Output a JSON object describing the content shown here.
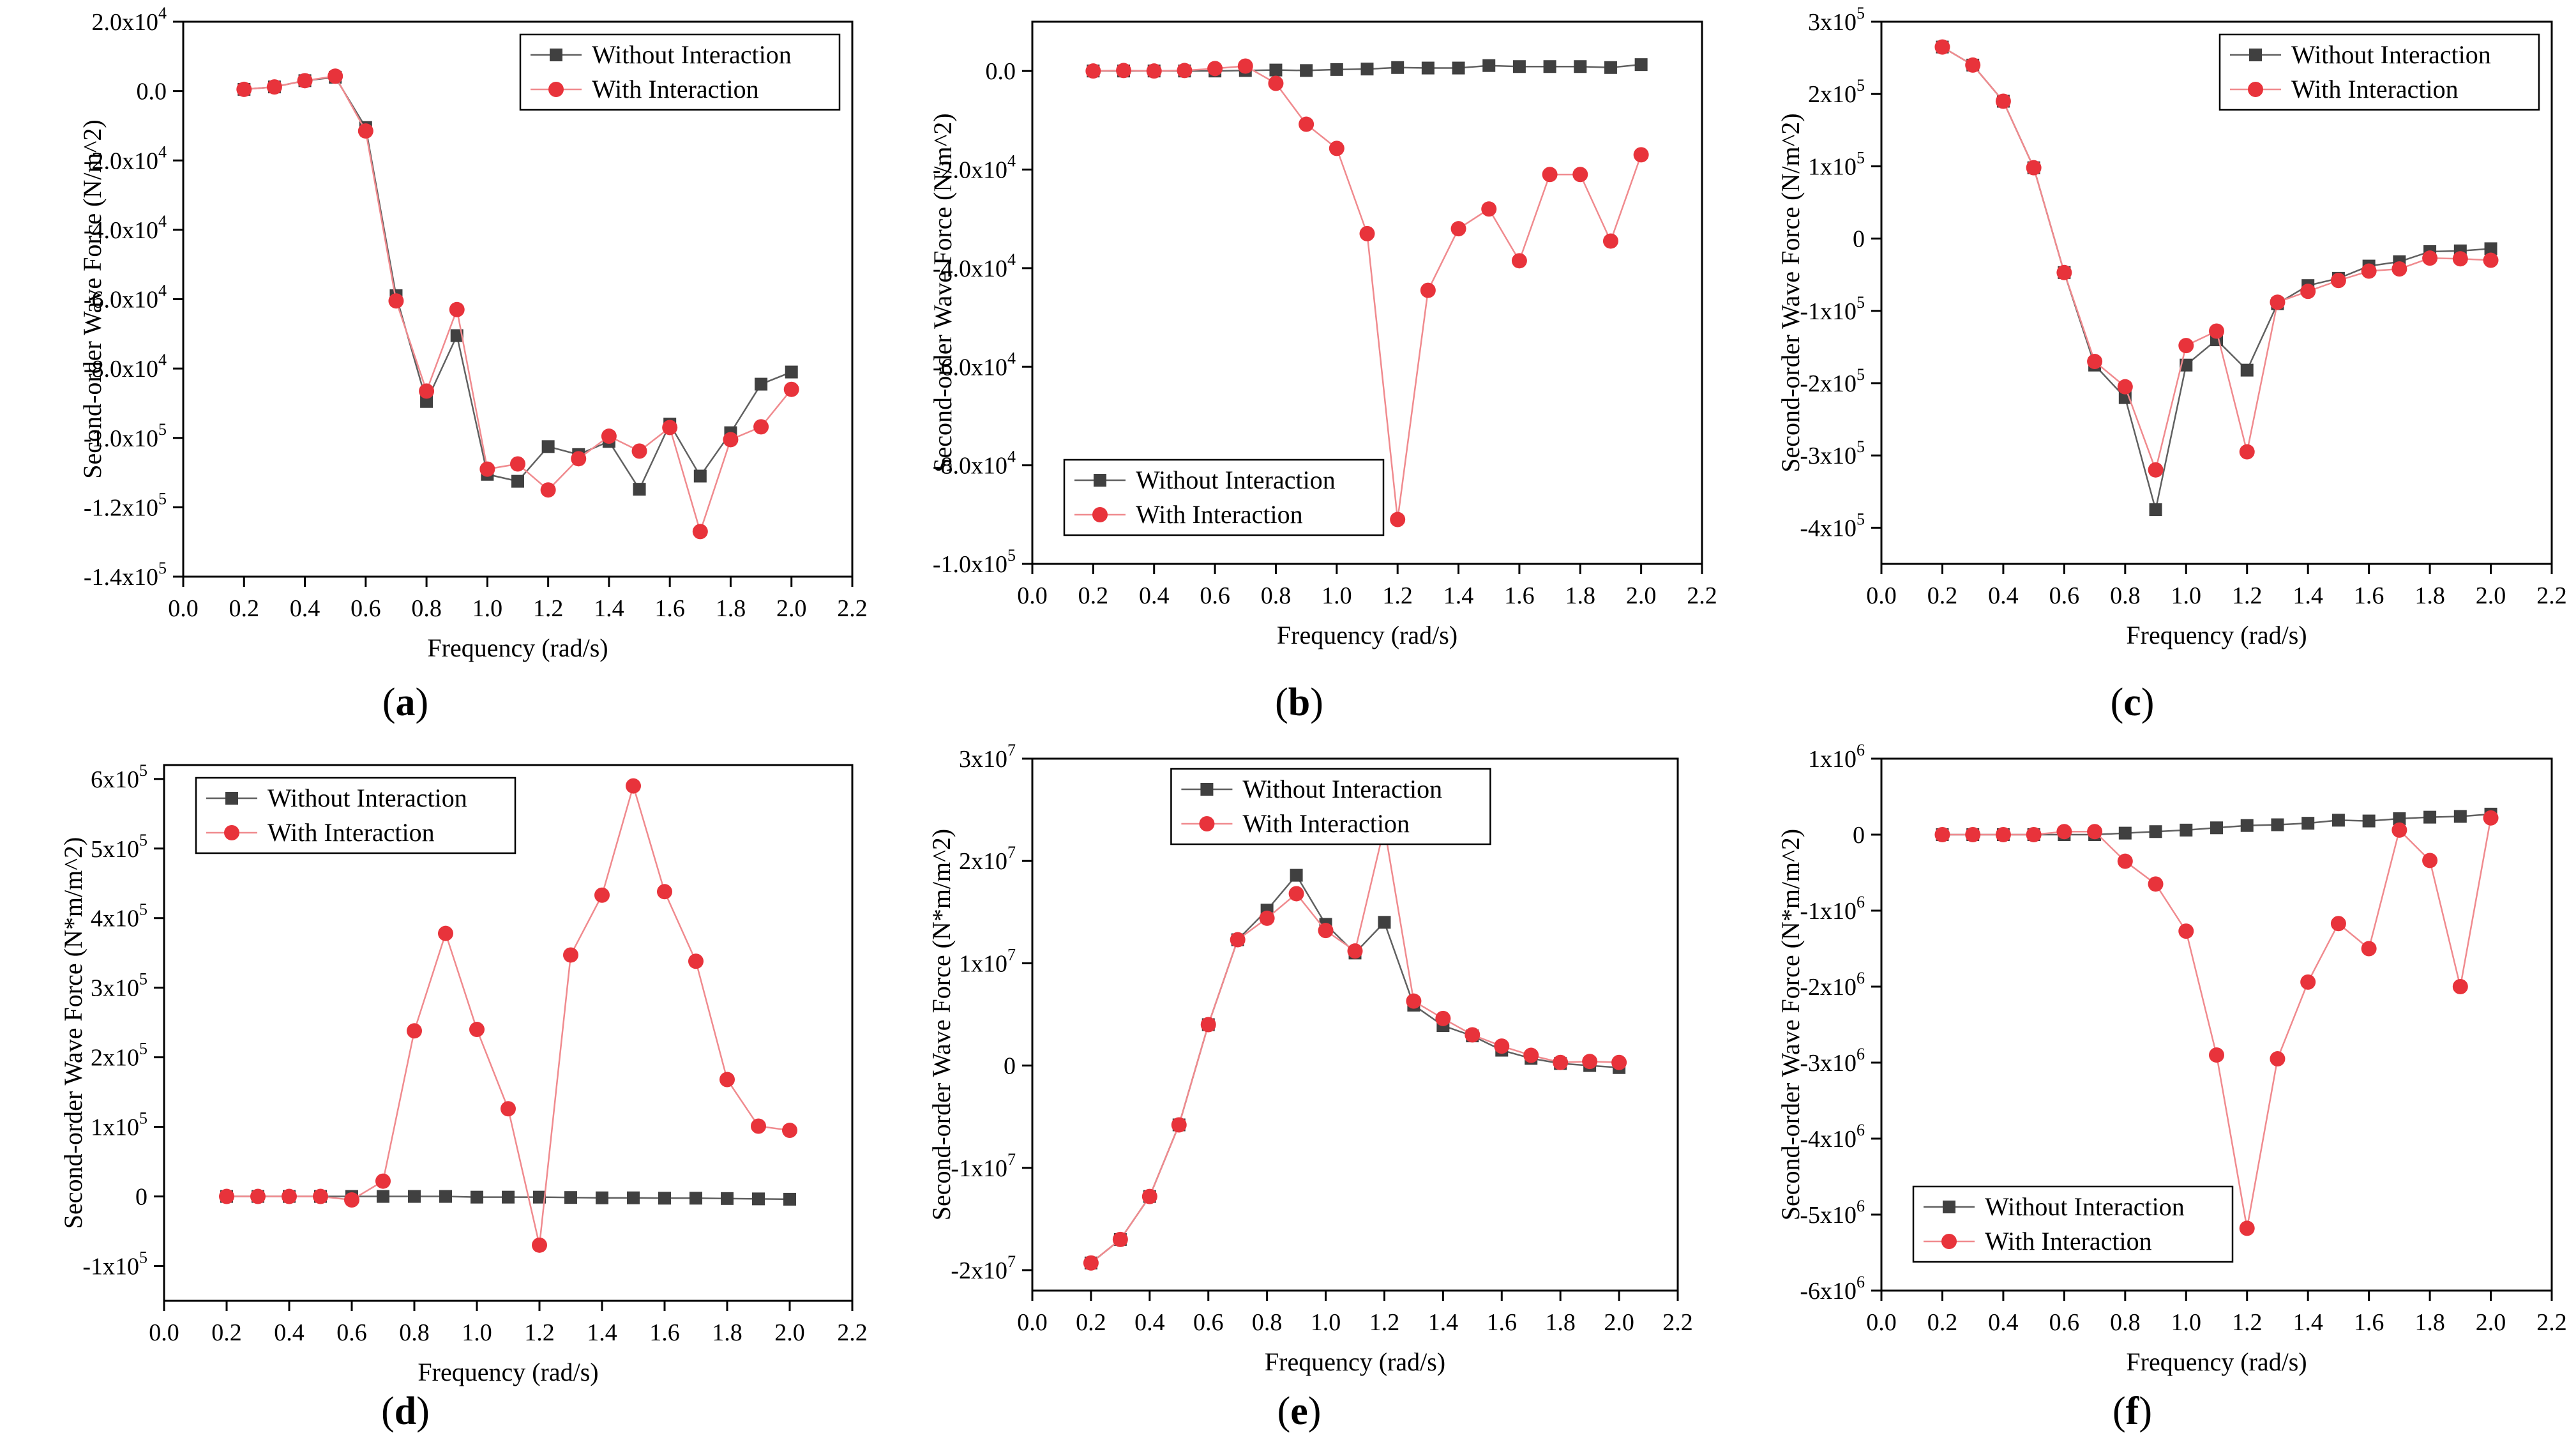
{
  "figure": {
    "series_names": [
      "Without Interaction",
      "With Interaction"
    ],
    "colors": {
      "without": "#404040",
      "with": "#e8333b",
      "with_line": "#f08a8e",
      "without_line": "#606060"
    }
  },
  "chart_data": [
    {
      "id": "a",
      "type": "line",
      "panel_label": "(a)",
      "xlabel": "Frequency (rad/s)",
      "ylabel": "Second-order Wave Force (N/m^2)",
      "xlim": [
        0,
        2.2
      ],
      "ylim": [
        -140000,
        20000
      ],
      "x_ticks": [
        0.0,
        0.2,
        0.4,
        0.6,
        0.8,
        1.0,
        1.2,
        1.4,
        1.6,
        1.8,
        2.0,
        2.2
      ],
      "x_tick_labels": [
        "0.0",
        "0.2",
        "0.4",
        "0.6",
        "0.8",
        "1.0",
        "1.2",
        "1.4",
        "1.6",
        "1.8",
        "2.0",
        "2.2"
      ],
      "y_ticks": [
        {
          "v": 20000,
          "m": "2.0x10",
          "e": "4"
        },
        {
          "v": 0,
          "m": "0.0",
          "e": ""
        },
        {
          "v": -20000,
          "m": "-2.0x10",
          "e": "4"
        },
        {
          "v": -40000,
          "m": "-4.0x10",
          "e": "4"
        },
        {
          "v": -60000,
          "m": "-6.0x10",
          "e": "4"
        },
        {
          "v": -80000,
          "m": "-8.0x10",
          "e": "4"
        },
        {
          "v": -100000,
          "m": "-1.0x10",
          "e": "5"
        },
        {
          "v": -120000,
          "m": "-1.2x10",
          "e": "5"
        },
        {
          "v": -140000,
          "m": "-1.4x10",
          "e": "5"
        }
      ],
      "legend_position": "top-right",
      "x": [
        0.2,
        0.3,
        0.4,
        0.5,
        0.6,
        0.7,
        0.8,
        0.9,
        1.0,
        1.1,
        1.2,
        1.3,
        1.4,
        1.5,
        1.6,
        1.7,
        1.8,
        1.9,
        2.0
      ],
      "series": [
        {
          "name": "Without Interaction",
          "values": [
            500,
            1200,
            3000,
            4000,
            -10500,
            -59000,
            -89500,
            -70500,
            -110500,
            -112500,
            -102500,
            -104800,
            -101000,
            -114800,
            -96000,
            -111000,
            -98500,
            -84500,
            -81000
          ]
        },
        {
          "name": "With Interaction",
          "values": [
            500,
            1200,
            3000,
            4300,
            -11500,
            -60500,
            -86500,
            -63000,
            -109000,
            -107500,
            -115000,
            -106000,
            -99500,
            -103800,
            -97000,
            -127000,
            -100500,
            -96800,
            -86000
          ]
        }
      ]
    },
    {
      "id": "b",
      "type": "line",
      "panel_label": "(b)",
      "xlabel": "Frequency (rad/s)",
      "ylabel": "Second-order Wave Force (N/m^2)",
      "xlim": [
        0,
        2.2
      ],
      "ylim": [
        -100000,
        10000
      ],
      "x_ticks": [
        0.0,
        0.2,
        0.4,
        0.6,
        0.8,
        1.0,
        1.2,
        1.4,
        1.6,
        1.8,
        2.0,
        2.2
      ],
      "x_tick_labels": [
        "0.0",
        "0.2",
        "0.4",
        "0.6",
        "0.8",
        "1.0",
        "1.2",
        "1.4",
        "1.6",
        "1.8",
        "2.0",
        "2.2"
      ],
      "y_ticks": [
        {
          "v": 0,
          "m": "0.0",
          "e": ""
        },
        {
          "v": -20000,
          "m": "-2.0x10",
          "e": "4"
        },
        {
          "v": -40000,
          "m": "-4.0x10",
          "e": "4"
        },
        {
          "v": -60000,
          "m": "-6.0x10",
          "e": "4"
        },
        {
          "v": -80000,
          "m": "-8.0x10",
          "e": "4"
        },
        {
          "v": -100000,
          "m": "-1.0x10",
          "e": "5"
        }
      ],
      "legend_position": "bottom-left",
      "x": [
        0.2,
        0.3,
        0.4,
        0.5,
        0.6,
        0.7,
        0.8,
        0.9,
        1.0,
        1.1,
        1.2,
        1.3,
        1.4,
        1.5,
        1.6,
        1.7,
        1.8,
        1.9,
        2.0
      ],
      "series": [
        {
          "name": "Without Interaction",
          "values": [
            0,
            0,
            0,
            0,
            0,
            100,
            200,
            100,
            300,
            400,
            700,
            600,
            600,
            1100,
            900,
            900,
            900,
            700,
            1300
          ]
        },
        {
          "name": "With Interaction",
          "values": [
            0,
            100,
            0,
            100,
            500,
            1000,
            -2500,
            -10800,
            -15700,
            -33000,
            -91000,
            -44500,
            -32000,
            -28000,
            -38500,
            -21000,
            -21000,
            -34500,
            -17000
          ]
        }
      ]
    },
    {
      "id": "c",
      "type": "line",
      "panel_label": "(c)",
      "xlabel": "Frequency (rad/s)",
      "ylabel": "Second-order Wave Force (N/m^2)",
      "xlim": [
        0,
        2.2
      ],
      "ylim": [
        -450000,
        300000
      ],
      "x_ticks": [
        0.0,
        0.2,
        0.4,
        0.6,
        0.8,
        1.0,
        1.2,
        1.4,
        1.6,
        1.8,
        2.0,
        2.2
      ],
      "x_tick_labels": [
        "0.0",
        "0.2",
        "0.4",
        "0.6",
        "0.8",
        "1.0",
        "1.2",
        "1.4",
        "1.6",
        "1.8",
        "2.0",
        "2.2"
      ],
      "y_ticks": [
        {
          "v": 300000,
          "m": "3x10",
          "e": "5"
        },
        {
          "v": 200000,
          "m": "2x10",
          "e": "5"
        },
        {
          "v": 100000,
          "m": "1x10",
          "e": "5"
        },
        {
          "v": 0,
          "m": "0",
          "e": ""
        },
        {
          "v": -100000,
          "m": "-1x10",
          "e": "5"
        },
        {
          "v": -200000,
          "m": "-2x10",
          "e": "5"
        },
        {
          "v": -300000,
          "m": "-3x10",
          "e": "5"
        },
        {
          "v": -400000,
          "m": "-4x10",
          "e": "5"
        }
      ],
      "legend_position": "top-right",
      "x": [
        0.2,
        0.3,
        0.4,
        0.5,
        0.6,
        0.7,
        0.8,
        0.9,
        1.0,
        1.1,
        1.2,
        1.3,
        1.4,
        1.5,
        1.6,
        1.7,
        1.8,
        1.9,
        2.0
      ],
      "series": [
        {
          "name": "Without Interaction",
          "values": [
            265000,
            240000,
            190000,
            98000,
            -47000,
            -175000,
            -220000,
            -375000,
            -175000,
            -140000,
            -182000,
            -90000,
            -65000,
            -55000,
            -38000,
            -32000,
            -18000,
            -17000,
            -14000
          ]
        },
        {
          "name": "With Interaction",
          "values": [
            265000,
            240000,
            190000,
            98000,
            -47000,
            -170000,
            -205000,
            -320000,
            -148000,
            -128000,
            -295000,
            -88000,
            -73000,
            -58000,
            -45000,
            -42000,
            -27000,
            -28000,
            -30000
          ]
        }
      ]
    },
    {
      "id": "d",
      "type": "line",
      "panel_label": "(d)",
      "xlabel": "Frequency (rad/s)",
      "ylabel": "Second-order Wave Force (N*m/m^2)",
      "xlim": [
        0,
        2.2
      ],
      "ylim": [
        -150000,
        620000
      ],
      "x_ticks": [
        0.0,
        0.2,
        0.4,
        0.6,
        0.8,
        1.0,
        1.2,
        1.4,
        1.6,
        1.8,
        2.0,
        2.2
      ],
      "x_tick_labels": [
        "0.0",
        "0.2",
        "0.4",
        "0.6",
        "0.8",
        "1.0",
        "1.2",
        "1.4",
        "1.6",
        "1.8",
        "2.0",
        "2.2"
      ],
      "y_ticks": [
        {
          "v": 600000,
          "m": "6x10",
          "e": "5"
        },
        {
          "v": 500000,
          "m": "5x10",
          "e": "5"
        },
        {
          "v": 400000,
          "m": "4x10",
          "e": "5"
        },
        {
          "v": 300000,
          "m": "3x10",
          "e": "5"
        },
        {
          "v": 200000,
          "m": "2x10",
          "e": "5"
        },
        {
          "v": 100000,
          "m": "1x10",
          "e": "5"
        },
        {
          "v": 0,
          "m": "0",
          "e": ""
        },
        {
          "v": -100000,
          "m": "-1x10",
          "e": "5"
        }
      ],
      "legend_position": "top-left",
      "x": [
        0.2,
        0.3,
        0.4,
        0.5,
        0.6,
        0.7,
        0.8,
        0.9,
        1.0,
        1.1,
        1.2,
        1.3,
        1.4,
        1.5,
        1.6,
        1.7,
        1.8,
        1.9,
        2.0
      ],
      "series": [
        {
          "name": "Without Interaction",
          "values": [
            0,
            0,
            0,
            0,
            0,
            0,
            0,
            0,
            -1000,
            -1000,
            -1000,
            -1500,
            -2000,
            -2000,
            -2500,
            -2500,
            -3000,
            -3500,
            -4000
          ]
        },
        {
          "name": "With Interaction",
          "values": [
            0,
            0,
            0,
            0,
            -5000,
            22000,
            238000,
            378000,
            240000,
            126000,
            -70000,
            347000,
            433000,
            590000,
            438000,
            338000,
            168000,
            101000,
            95000
          ]
        }
      ]
    },
    {
      "id": "e",
      "type": "line",
      "panel_label": "(e)",
      "xlabel": "Frequency (rad/s)",
      "ylabel": "Second-order Wave Force (N*m/m^2)",
      "xlim": [
        0,
        2.2
      ],
      "ylim": [
        -22000000,
        30000000
      ],
      "x_ticks": [
        0.0,
        0.2,
        0.4,
        0.6,
        0.8,
        1.0,
        1.2,
        1.4,
        1.6,
        1.8,
        2.0,
        2.2
      ],
      "x_tick_labels": [
        "0.0",
        "0.2",
        "0.4",
        "0.6",
        "0.8",
        "1.0",
        "1.2",
        "1.4",
        "1.6",
        "1.8",
        "2.0",
        "2.2"
      ],
      "y_ticks": [
        {
          "v": 30000000,
          "m": "3x10",
          "e": "7"
        },
        {
          "v": 20000000,
          "m": "2x10",
          "e": "7"
        },
        {
          "v": 10000000,
          "m": "1x10",
          "e": "7"
        },
        {
          "v": 0,
          "m": "0",
          "e": ""
        },
        {
          "v": -10000000,
          "m": "-1x10",
          "e": "7"
        },
        {
          "v": -20000000,
          "m": "-2x10",
          "e": "7"
        }
      ],
      "legend_position": "top-center",
      "x": [
        0.2,
        0.3,
        0.4,
        0.5,
        0.6,
        0.7,
        0.8,
        0.9,
        1.0,
        1.1,
        1.2,
        1.3,
        1.4,
        1.5,
        1.6,
        1.7,
        1.8,
        1.9,
        2.0
      ],
      "series": [
        {
          "name": "Without Interaction",
          "values": [
            -19300000,
            -17000000,
            -12800000,
            -5800000,
            4000000,
            12300000,
            15200000,
            18600000,
            13800000,
            11000000,
            14000000,
            5900000,
            3900000,
            2900000,
            1500000,
            700000,
            200000,
            0,
            -200000
          ]
        },
        {
          "name": "With Interaction",
          "values": [
            -19300000,
            -17000000,
            -12800000,
            -5800000,
            4000000,
            12300000,
            14400000,
            16800000,
            13200000,
            11200000,
            23300000,
            6300000,
            4600000,
            3000000,
            1900000,
            1000000,
            300000,
            400000,
            300000
          ]
        }
      ]
    },
    {
      "id": "f",
      "type": "line",
      "panel_label": "(f)",
      "xlabel": "Frequency (rad/s)",
      "ylabel": "Second-order Wave Force (N*m/m^2)",
      "xlim": [
        0,
        2.2
      ],
      "ylim": [
        -6000000,
        1000000
      ],
      "x_ticks": [
        0.0,
        0.2,
        0.4,
        0.6,
        0.8,
        1.0,
        1.2,
        1.4,
        1.6,
        1.8,
        2.0,
        2.2
      ],
      "x_tick_labels": [
        "0.0",
        "0.2",
        "0.4",
        "0.6",
        "0.8",
        "1.0",
        "1.2",
        "1.4",
        "1.6",
        "1.8",
        "2.0",
        "2.2"
      ],
      "y_ticks": [
        {
          "v": 1000000,
          "m": "1x10",
          "e": "6"
        },
        {
          "v": 0,
          "m": "0",
          "e": ""
        },
        {
          "v": -1000000,
          "m": "-1x10",
          "e": "6"
        },
        {
          "v": -2000000,
          "m": "-2x10",
          "e": "6"
        },
        {
          "v": -3000000,
          "m": "-3x10",
          "e": "6"
        },
        {
          "v": -4000000,
          "m": "-4x10",
          "e": "6"
        },
        {
          "v": -5000000,
          "m": "-5x10",
          "e": "6"
        },
        {
          "v": -6000000,
          "m": "-6x10",
          "e": "6"
        }
      ],
      "legend_position": "bottom-left",
      "x": [
        0.2,
        0.3,
        0.4,
        0.5,
        0.6,
        0.7,
        0.8,
        0.9,
        1.0,
        1.1,
        1.2,
        1.3,
        1.4,
        1.5,
        1.6,
        1.7,
        1.8,
        1.9,
        2.0
      ],
      "series": [
        {
          "name": "Without Interaction",
          "values": [
            0,
            0,
            0,
            0,
            0,
            0,
            20000,
            40000,
            60000,
            90000,
            120000,
            130000,
            150000,
            190000,
            180000,
            210000,
            230000,
            240000,
            270000
          ]
        },
        {
          "name": "With Interaction",
          "values": [
            0,
            0,
            0,
            0,
            40000,
            40000,
            -350000,
            -650000,
            -1270000,
            -2900000,
            -5180000,
            -2950000,
            -1940000,
            -1170000,
            -1500000,
            60000,
            -340000,
            -2000000,
            220000
          ]
        }
      ]
    }
  ]
}
